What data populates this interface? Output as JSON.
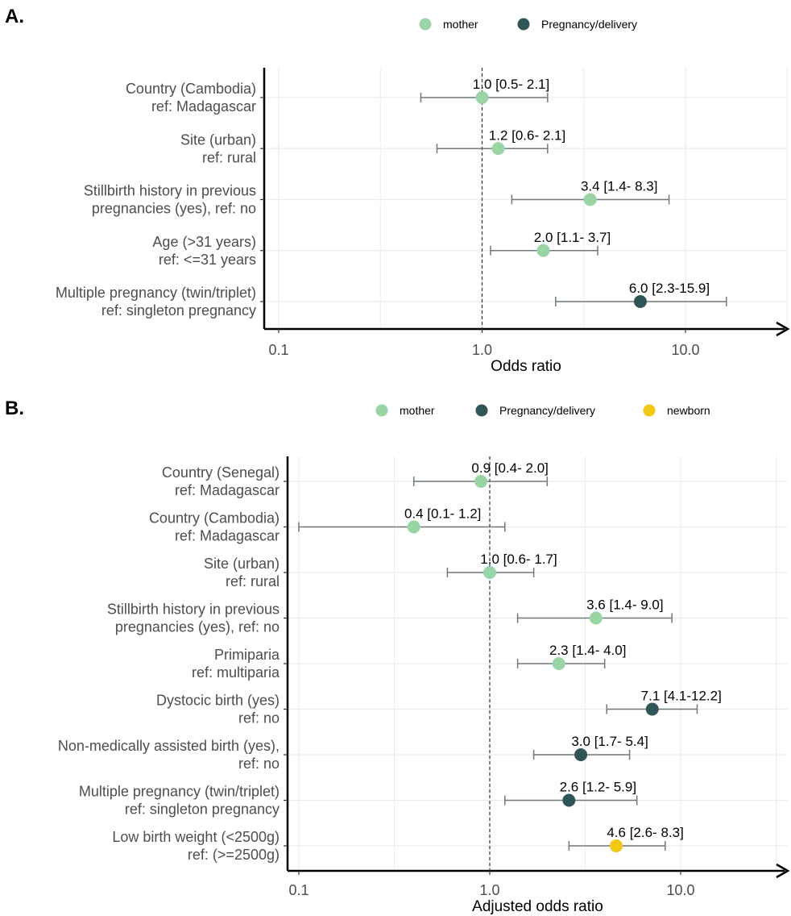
{
  "colors": {
    "mother": "#99d5a4",
    "Pregnancy/delivery": "#2f5558",
    "newborn": "#f2c813",
    "errorbar": "#707a78",
    "grid": "#ebebeb"
  },
  "chart_data": [
    {
      "type": "forest",
      "panel_label": "A.",
      "xlabel": "Odds ratio",
      "x_scale": "log",
      "xlim": [
        0.09,
        23
      ],
      "xticks": [
        0.1,
        1.0,
        10.0
      ],
      "xtick_labels": [
        "0.1",
        "1.0",
        "10.0"
      ],
      "reference_line": 1.0,
      "grid": true,
      "legend_position": "top",
      "legend": [
        "mother",
        "Pregnancy/delivery"
      ],
      "rows": [
        {
          "line1": "Country (Cambodia)",
          "line2": "ref: Madagascar",
          "or": 1.0,
          "lo": 0.5,
          "hi": 2.1,
          "group": "mother",
          "text": "1.0 [0.5- 2.1]"
        },
        {
          "line1": "Site (urban)",
          "line2": "ref: rural",
          "or": 1.2,
          "lo": 0.6,
          "hi": 2.1,
          "group": "mother",
          "text": "1.2 [0.6- 2.1]"
        },
        {
          "line1": "Stillbirth history in previous",
          "line2": "pregnancies (yes), ref: no",
          "or": 3.4,
          "lo": 1.4,
          "hi": 8.3,
          "group": "mother",
          "text": "3.4 [1.4- 8.3]"
        },
        {
          "line1": "Age (>31 years)",
          "line2": "ref: <=31 years",
          "or": 2.0,
          "lo": 1.1,
          "hi": 3.7,
          "group": "mother",
          "text": "2.0 [1.1- 3.7]"
        },
        {
          "line1": "Multiple pregnancy (twin/triplet)",
          "line2": "ref: singleton pregnancy",
          "or": 6.0,
          "lo": 2.3,
          "hi": 15.9,
          "group": "Pregnancy/delivery",
          "text": "6.0 [2.3-15.9]"
        }
      ]
    },
    {
      "type": "forest",
      "panel_label": "B.",
      "xlabel": "Adjusted odds ratio",
      "x_scale": "log",
      "xlim": [
        0.09,
        23
      ],
      "xticks": [
        0.1,
        1.0,
        10.0
      ],
      "xtick_labels": [
        "0.1",
        "1.0",
        "10.0"
      ],
      "reference_line": 1.0,
      "grid": true,
      "legend_position": "top",
      "legend": [
        "mother",
        "Pregnancy/delivery",
        "newborn"
      ],
      "rows": [
        {
          "line1": "Country (Senegal)",
          "line2": "ref: Madagascar",
          "or": 0.9,
          "lo": 0.4,
          "hi": 2.0,
          "group": "mother",
          "text": "0.9 [0.4- 2.0]"
        },
        {
          "line1": "Country (Cambodia)",
          "line2": "ref: Madagascar",
          "or": 0.4,
          "lo": 0.1,
          "hi": 1.2,
          "group": "mother",
          "text": "0.4 [0.1- 1.2]"
        },
        {
          "line1": "Site (urban)",
          "line2": "ref: rural",
          "or": 1.0,
          "lo": 0.6,
          "hi": 1.7,
          "group": "mother",
          "text": "1.0 [0.6- 1.7]"
        },
        {
          "line1": "Stillbirth history in previous",
          "line2": "pregnancies (yes), ref: no",
          "or": 3.6,
          "lo": 1.4,
          "hi": 9.0,
          "group": "mother",
          "text": "3.6 [1.4- 9.0]"
        },
        {
          "line1": "Primiparia",
          "line2": "ref: multiparia",
          "or": 2.3,
          "lo": 1.4,
          "hi": 4.0,
          "group": "mother",
          "text": "2.3 [1.4- 4.0]"
        },
        {
          "line1": "Dystocic birth (yes)",
          "line2": "ref: no",
          "or": 7.1,
          "lo": 4.1,
          "hi": 12.2,
          "group": "Pregnancy/delivery",
          "text": "7.1 [4.1-12.2]"
        },
        {
          "line1": "Non-medically assisted birth (yes),",
          "line2": "ref: no",
          "or": 3.0,
          "lo": 1.7,
          "hi": 5.4,
          "group": "Pregnancy/delivery",
          "text": "3.0 [1.7- 5.4]"
        },
        {
          "line1": "Multiple pregnancy (twin/triplet)",
          "line2": "ref: singleton pregnancy",
          "or": 2.6,
          "lo": 1.2,
          "hi": 5.9,
          "group": "Pregnancy/delivery",
          "text": "2.6 [1.2- 5.9]"
        },
        {
          "line1": "Low birth weight (<2500g)",
          "line2": "ref: (>=2500g)",
          "or": 4.6,
          "lo": 2.6,
          "hi": 8.3,
          "group": "newborn",
          "text": "4.6 [2.6- 8.3]"
        }
      ]
    }
  ]
}
